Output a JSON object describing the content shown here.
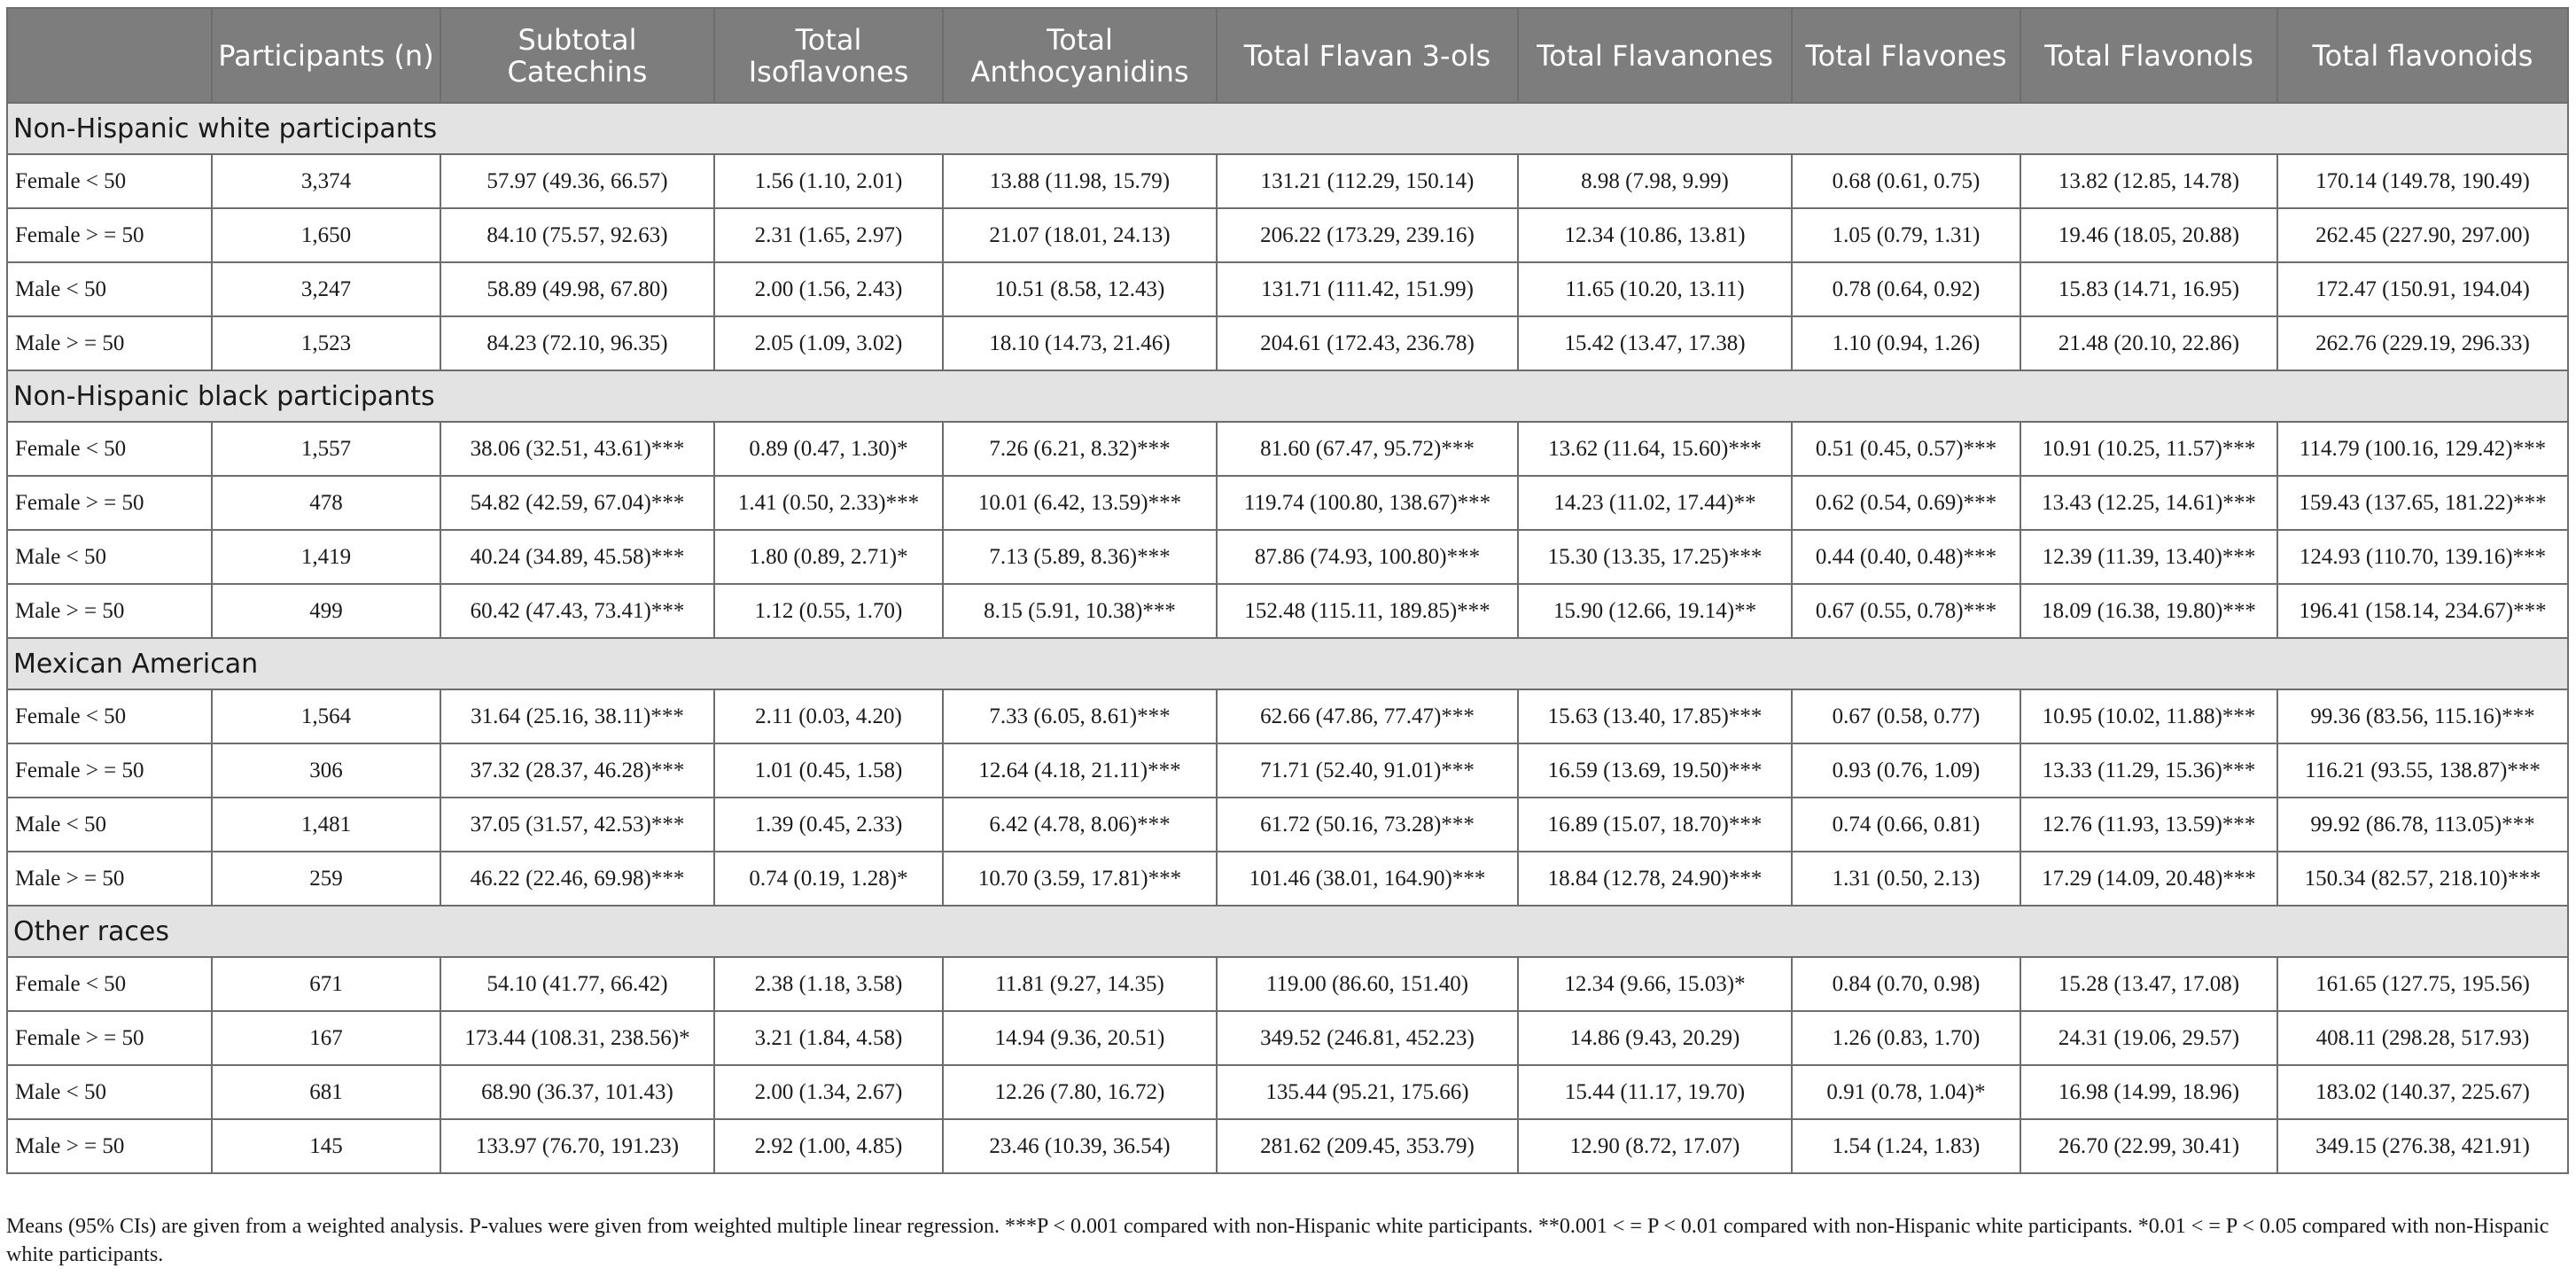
{
  "columns": [
    "",
    "Participants (n)",
    "Subtotal Catechins",
    "Total Isoflavones",
    "Total Anthocyanidins",
    "Total Flavan 3-ols",
    "Total Flavanones",
    "Total Flavones",
    "Total Flavonols",
    "Total flavonoids"
  ],
  "groups": [
    {
      "title": "Non-Hispanic white participants",
      "rows": [
        [
          "Female < 50",
          "3,374",
          "57.97 (49.36, 66.57)",
          "1.56 (1.10, 2.01)",
          "13.88 (11.98, 15.79)",
          "131.21 (112.29, 150.14)",
          "8.98 (7.98, 9.99)",
          "0.68 (0.61, 0.75)",
          "13.82 (12.85, 14.78)",
          "170.14 (149.78, 190.49)"
        ],
        [
          "Female > = 50",
          "1,650",
          "84.10 (75.57, 92.63)",
          "2.31 (1.65, 2.97)",
          "21.07 (18.01, 24.13)",
          "206.22 (173.29, 239.16)",
          "12.34 (10.86, 13.81)",
          "1.05 (0.79, 1.31)",
          "19.46 (18.05, 20.88)",
          "262.45 (227.90, 297.00)"
        ],
        [
          "Male < 50",
          "3,247",
          "58.89 (49.98, 67.80)",
          "2.00 (1.56, 2.43)",
          "10.51 (8.58, 12.43)",
          "131.71 (111.42, 151.99)",
          "11.65 (10.20, 13.11)",
          "0.78 (0.64, 0.92)",
          "15.83 (14.71, 16.95)",
          "172.47 (150.91, 194.04)"
        ],
        [
          "Male > = 50",
          "1,523",
          "84.23 (72.10, 96.35)",
          "2.05 (1.09, 3.02)",
          "18.10 (14.73, 21.46)",
          "204.61 (172.43, 236.78)",
          "15.42 (13.47, 17.38)",
          "1.10 (0.94, 1.26)",
          "21.48 (20.10, 22.86)",
          "262.76 (229.19, 296.33)"
        ]
      ]
    },
    {
      "title": "Non-Hispanic black participants",
      "rows": [
        [
          "Female < 50",
          "1,557",
          "38.06 (32.51, 43.61)***",
          "0.89 (0.47, 1.30)*",
          "7.26 (6.21, 8.32)***",
          "81.60 (67.47, 95.72)***",
          "13.62 (11.64, 15.60)***",
          "0.51 (0.45, 0.57)***",
          "10.91 (10.25, 11.57)***",
          "114.79 (100.16, 129.42)***"
        ],
        [
          "Female > = 50",
          "478",
          "54.82 (42.59, 67.04)***",
          "1.41 (0.50, 2.33)***",
          "10.01 (6.42, 13.59)***",
          "119.74 (100.80, 138.67)***",
          "14.23 (11.02, 17.44)**",
          "0.62 (0.54, 0.69)***",
          "13.43 (12.25, 14.61)***",
          "159.43 (137.65, 181.22)***"
        ],
        [
          "Male < 50",
          "1,419",
          "40.24 (34.89, 45.58)***",
          "1.80 (0.89, 2.71)*",
          "7.13 (5.89, 8.36)***",
          "87.86 (74.93, 100.80)***",
          "15.30 (13.35, 17.25)***",
          "0.44 (0.40, 0.48)***",
          "12.39 (11.39, 13.40)***",
          "124.93 (110.70, 139.16)***"
        ],
        [
          "Male > = 50",
          "499",
          "60.42 (47.43, 73.41)***",
          "1.12 (0.55, 1.70)",
          "8.15 (5.91, 10.38)***",
          "152.48 (115.11, 189.85)***",
          "15.90 (12.66, 19.14)**",
          "0.67 (0.55, 0.78)***",
          "18.09 (16.38, 19.80)***",
          "196.41 (158.14, 234.67)***"
        ]
      ]
    },
    {
      "title": "Mexican American",
      "rows": [
        [
          "Female < 50",
          "1,564",
          "31.64 (25.16, 38.11)***",
          "2.11 (0.03, 4.20)",
          "7.33 (6.05, 8.61)***",
          "62.66 (47.86, 77.47)***",
          "15.63 (13.40, 17.85)***",
          "0.67 (0.58, 0.77)",
          "10.95 (10.02, 11.88)***",
          "99.36 (83.56, 115.16)***"
        ],
        [
          "Female > = 50",
          "306",
          "37.32 (28.37, 46.28)***",
          "1.01 (0.45, 1.58)",
          "12.64 (4.18, 21.11)***",
          "71.71 (52.40, 91.01)***",
          "16.59 (13.69, 19.50)***",
          "0.93 (0.76, 1.09)",
          "13.33 (11.29, 15.36)***",
          "116.21 (93.55, 138.87)***"
        ],
        [
          "Male < 50",
          "1,481",
          "37.05 (31.57, 42.53)***",
          "1.39 (0.45, 2.33)",
          "6.42 (4.78, 8.06)***",
          "61.72 (50.16, 73.28)***",
          "16.89 (15.07, 18.70)***",
          "0.74 (0.66, 0.81)",
          "12.76 (11.93, 13.59)***",
          "99.92 (86.78, 113.05)***"
        ],
        [
          "Male > = 50",
          "259",
          "46.22 (22.46, 69.98)***",
          "0.74 (0.19, 1.28)*",
          "10.70 (3.59, 17.81)***",
          "101.46 (38.01, 164.90)***",
          "18.84 (12.78, 24.90)***",
          "1.31 (0.50, 2.13)",
          "17.29 (14.09, 20.48)***",
          "150.34 (82.57, 218.10)***"
        ]
      ]
    },
    {
      "title": "Other races",
      "rows": [
        [
          "Female < 50",
          "671",
          "54.10 (41.77, 66.42)",
          "2.38 (1.18, 3.58)",
          "11.81 (9.27, 14.35)",
          "119.00 (86.60, 151.40)",
          "12.34 (9.66, 15.03)*",
          "0.84 (0.70, 0.98)",
          "15.28 (13.47, 17.08)",
          "161.65 (127.75, 195.56)"
        ],
        [
          "Female > = 50",
          "167",
          "173.44 (108.31, 238.56)*",
          "3.21 (1.84, 4.58)",
          "14.94 (9.36, 20.51)",
          "349.52 (246.81, 452.23)",
          "14.86 (9.43, 20.29)",
          "1.26 (0.83, 1.70)",
          "24.31 (19.06, 29.57)",
          "408.11 (298.28, 517.93)"
        ],
        [
          "Male < 50",
          "681",
          "68.90 (36.37, 101.43)",
          "2.00 (1.34, 2.67)",
          "12.26 (7.80, 16.72)",
          "135.44 (95.21, 175.66)",
          "15.44 (11.17, 19.70)",
          "0.91 (0.78, 1.04)*",
          "16.98 (14.99, 18.96)",
          "183.02 (140.37, 225.67)"
        ],
        [
          "Male > = 50",
          "145",
          "133.97 (76.70, 191.23)",
          "2.92 (1.00, 4.85)",
          "23.46 (10.39, 36.54)",
          "281.62 (209.45, 353.79)",
          "12.90 (8.72, 17.07)",
          "1.54 (1.24, 1.83)",
          "26.70 (22.99, 30.41)",
          "349.15 (276.38, 421.91)"
        ]
      ]
    }
  ],
  "footnote": "Means (95% CIs) are given from a weighted analysis. P-values were given from weighted multiple linear regression. ***P < 0.001 compared with non-Hispanic white participants. **0.001 < = P < 0.01 compared with non-Hispanic white participants. *0.01 < = P < 0.05 compared with non-Hispanic white participants."
}
